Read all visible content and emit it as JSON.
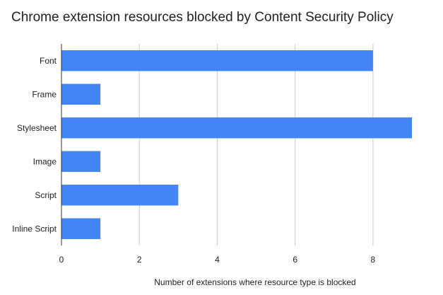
{
  "chart_data": {
    "type": "bar",
    "orientation": "horizontal",
    "title": "Chrome extension resources blocked by Content Security Policy",
    "xlabel": "Number of extensions where resource type is blocked",
    "ylabel": "",
    "categories": [
      "Font",
      "Frame",
      "Stylesheet",
      "Image",
      "Script",
      "Inline Script"
    ],
    "values": [
      8,
      1,
      9,
      1,
      3,
      1
    ],
    "xlim": [
      0,
      9
    ],
    "xticks": [
      0,
      2,
      4,
      6,
      8
    ],
    "grid": true,
    "legend": "none",
    "colors": {
      "bar": "#4285f4",
      "grid": "#cccccc",
      "axis": "#333333"
    }
  }
}
